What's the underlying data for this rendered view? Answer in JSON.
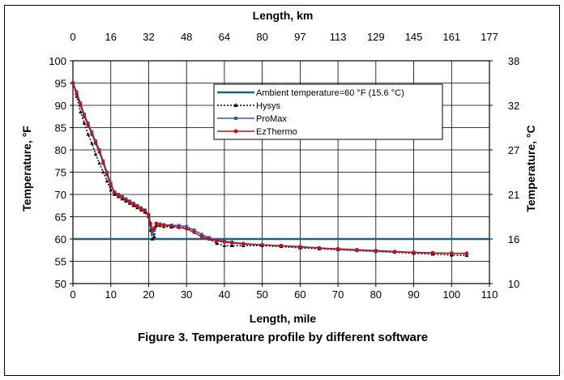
{
  "chart_data": {
    "type": "line",
    "title": "Figure 3. Temperature profile by different software",
    "xlabel": "Length, mile",
    "ylabel": "Temperature, °F",
    "x2label": "Length, km",
    "y2label": "Temperature, °C",
    "xlim": [
      0,
      110
    ],
    "ylim": [
      50,
      100
    ],
    "grid": true,
    "legend_position": "top-center",
    "x_ticks": [
      "0",
      "10",
      "20",
      "30",
      "40",
      "50",
      "60",
      "70",
      "80",
      "90",
      "100",
      "110"
    ],
    "y_ticks": [
      "50",
      "55",
      "60",
      "65",
      "70",
      "75",
      "80",
      "85",
      "90",
      "95",
      "100"
    ],
    "x2_ticks": [
      "0",
      "16",
      "32",
      "48",
      "64",
      "80",
      "97",
      "113",
      "129",
      "145",
      "161",
      "177"
    ],
    "y2_ticks": [
      "10",
      "16",
      "21",
      "27",
      "32",
      "38"
    ],
    "series": [
      {
        "name": "Ambient temperature=60 °F (15.6 °C)",
        "color": "#1f5f8b",
        "style": "solid-thick",
        "x": [
          0,
          110
        ],
        "y": [
          60,
          60
        ]
      },
      {
        "name": "Hysys",
        "color": "#000000",
        "style": "dotted-triangle",
        "x": [
          0,
          1,
          2,
          3,
          4,
          5,
          6,
          7,
          8,
          9,
          10,
          11,
          12,
          13,
          14,
          15,
          16,
          17,
          18,
          19,
          20,
          20.5,
          21,
          21.5,
          22,
          23,
          24,
          26,
          28,
          30,
          32,
          34,
          36,
          38,
          40,
          42,
          45,
          50,
          55,
          60,
          65,
          70,
          75,
          80,
          85,
          90,
          95,
          100,
          104
        ],
        "y": [
          95,
          92,
          88.5,
          86,
          83.5,
          81.5,
          79,
          77,
          75,
          73,
          71,
          70,
          69.5,
          69,
          68.5,
          68,
          67.5,
          67,
          66.5,
          66,
          65,
          62,
          60,
          60.5,
          63,
          63,
          62.8,
          62.7,
          62.6,
          62.5,
          62,
          61,
          60,
          59,
          58.5,
          58.5,
          58.5,
          58.5,
          58.3,
          58,
          57.8,
          57.6,
          57.4,
          57.2,
          57,
          56.8,
          56.6,
          56.4,
          56.3
        ]
      },
      {
        "name": "ProMax",
        "color": "#2f5fa8",
        "style": "solid-square",
        "x": [
          0,
          1,
          2,
          3,
          4,
          5,
          6,
          7,
          8,
          9,
          10,
          11,
          12,
          13,
          14,
          15,
          16,
          17,
          18,
          19,
          20,
          20.5,
          21,
          21.5,
          22,
          23,
          24,
          26,
          28,
          30,
          32,
          34,
          36,
          38,
          40,
          42,
          45,
          50,
          55,
          60,
          65,
          70,
          75,
          80,
          85,
          90,
          95,
          100,
          104
        ],
        "y": [
          95,
          93,
          90.5,
          88,
          86,
          84,
          82,
          80,
          77.5,
          75,
          72.5,
          70.5,
          70,
          69.5,
          69,
          68.5,
          68,
          67.5,
          67,
          66.5,
          65.5,
          63,
          61,
          62,
          63.5,
          63.3,
          63.2,
          63.1,
          63,
          62.8,
          62,
          61,
          60.3,
          59.8,
          59.5,
          59.3,
          59,
          58.7,
          58.5,
          58.2,
          58,
          57.7,
          57.5,
          57.3,
          57.1,
          57,
          56.9,
          56.8,
          56.7
        ]
      },
      {
        "name": "EzThermo",
        "color": "#c0101c",
        "style": "solid-circle",
        "x": [
          0,
          1,
          2,
          3,
          4,
          5,
          6,
          7,
          8,
          9,
          10,
          11,
          12,
          13,
          14,
          15,
          16,
          17,
          18,
          19,
          20,
          20.5,
          21,
          21.5,
          22,
          23,
          24,
          26,
          28,
          30,
          32,
          34,
          36,
          38,
          40,
          42,
          45,
          50,
          55,
          60,
          65,
          70,
          75,
          80,
          85,
          90,
          95,
          100,
          104
        ],
        "y": [
          95,
          92.5,
          90,
          87.5,
          85.5,
          83.5,
          81.5,
          79.5,
          77,
          74.5,
          72,
          70.5,
          69.8,
          69.3,
          68.8,
          68.3,
          67.8,
          67.3,
          66.8,
          66.3,
          65.3,
          63.5,
          62,
          62.5,
          63.5,
          63.3,
          63.1,
          62.9,
          62.6,
          62.3,
          61.5,
          60.5,
          60,
          59.6,
          59.3,
          59.1,
          58.9,
          58.7,
          58.5,
          58.3,
          58,
          57.8,
          57.6,
          57.4,
          57.2,
          57,
          56.9,
          56.8,
          56.8
        ]
      }
    ]
  }
}
